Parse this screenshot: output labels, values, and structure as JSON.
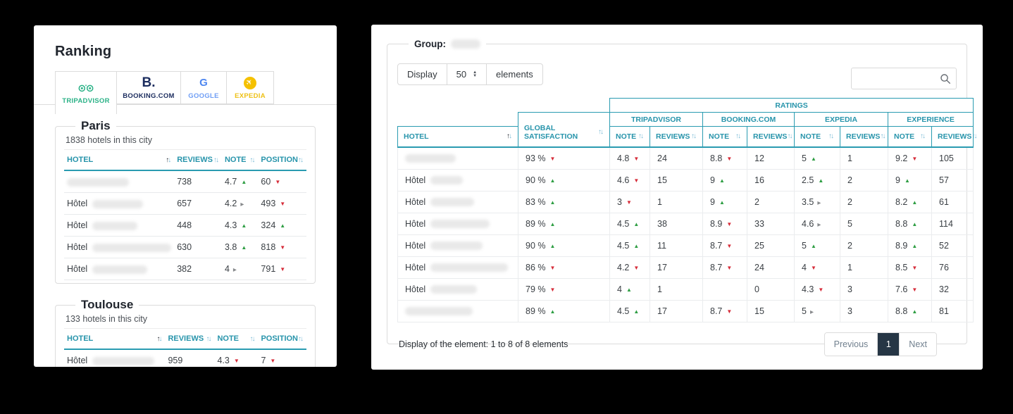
{
  "left_panel": {
    "title": "Ranking",
    "tabs": [
      {
        "label": "TRIPADVISOR",
        "icon": "tripadvisor-owl-icon",
        "color": "#2bb287",
        "icon_color": "#2bb287",
        "active": true
      },
      {
        "label": "BOOKING.COM",
        "icon": "booking-logo-icon",
        "color": "#1b2c5e",
        "icon_color": "#1b2c5e",
        "active": false
      },
      {
        "label": "GOOGLE",
        "icon": "google-g-icon",
        "color": "#6f9ef5",
        "icon_color": "#4c86f0",
        "active": false
      },
      {
        "label": "EXPEDIA",
        "icon": "expedia-plane-icon",
        "color": "#eec117",
        "icon_color": "#f5c100",
        "active": false
      }
    ],
    "table_columns": [
      "HOTEL",
      "REVIEWS",
      "NOTE",
      "POSITION"
    ],
    "cities": [
      {
        "name": "Paris",
        "subtitle": "1838 hotels in this city",
        "rows": [
          {
            "prefix": "",
            "blur": 88,
            "reviews": "738",
            "note": "4.7",
            "note_trend": "up",
            "position": "60",
            "position_trend": "down"
          },
          {
            "prefix": "Hôtel",
            "blur": 72,
            "reviews": "657",
            "note": "4.2",
            "note_trend": "flat",
            "position": "493",
            "position_trend": "down"
          },
          {
            "prefix": "Hôtel",
            "blur": 64,
            "reviews": "448",
            "note": "4.3",
            "note_trend": "up",
            "position": "324",
            "position_trend": "up"
          },
          {
            "prefix": "Hôtel",
            "blur": 112,
            "reviews": "630",
            "note": "3.8",
            "note_trend": "up",
            "position": "818",
            "position_trend": "down"
          },
          {
            "prefix": "Hôtel",
            "blur": 78,
            "reviews": "382",
            "note": "4",
            "note_trend": "flat",
            "position": "791",
            "position_trend": "down"
          }
        ]
      },
      {
        "name": "Toulouse",
        "subtitle": "133 hotels in this city",
        "rows": [
          {
            "prefix": "Hôtel",
            "blur": 88,
            "reviews": "959",
            "note": "4.3",
            "note_trend": "down",
            "position": "7",
            "position_trend": "down"
          }
        ]
      }
    ]
  },
  "right_panel": {
    "group_label": "Group:",
    "display_control": {
      "prefix": "Display",
      "value": "50",
      "suffix": "elements"
    },
    "search_value": "",
    "table": {
      "ratings_header": "RATINGS",
      "platforms": [
        "TRIPADVISOR",
        "BOOKING.COM",
        "EXPEDIA",
        "EXPERIENCE"
      ],
      "hotel_col": "HOTEL",
      "global_col": "GLOBAL SATISFACTION",
      "note_col": "NOTE",
      "reviews_col": "REVIEWS",
      "rows": [
        {
          "prefix": "",
          "blur": 72,
          "global": "93 %",
          "global_trend": "down",
          "cells": [
            {
              "v": "4.8",
              "t": "down"
            },
            {
              "v": "24"
            },
            {
              "v": "8.8",
              "t": "down"
            },
            {
              "v": "12"
            },
            {
              "v": "5",
              "t": "up"
            },
            {
              "v": "1"
            },
            {
              "v": "9.2",
              "t": "down"
            },
            {
              "v": "105"
            }
          ]
        },
        {
          "prefix": "Hôtel",
          "blur": 46,
          "global": "90 %",
          "global_trend": "up",
          "cells": [
            {
              "v": "4.6",
              "t": "down"
            },
            {
              "v": "15"
            },
            {
              "v": "9",
              "t": "up"
            },
            {
              "v": "16"
            },
            {
              "v": "2.5",
              "t": "up"
            },
            {
              "v": "2"
            },
            {
              "v": "9",
              "t": "up"
            },
            {
              "v": "57"
            }
          ]
        },
        {
          "prefix": "Hôtel",
          "blur": 62,
          "global": "83 %",
          "global_trend": "up",
          "cells": [
            {
              "v": "3",
              "t": "down"
            },
            {
              "v": "1"
            },
            {
              "v": "9",
              "t": "up"
            },
            {
              "v": "2"
            },
            {
              "v": "3.5",
              "t": "flat"
            },
            {
              "v": "2"
            },
            {
              "v": "8.2",
              "t": "up"
            },
            {
              "v": "61"
            }
          ]
        },
        {
          "prefix": "Hôtel",
          "blur": 84,
          "global": "89 %",
          "global_trend": "up",
          "cells": [
            {
              "v": "4.5",
              "t": "up"
            },
            {
              "v": "38"
            },
            {
              "v": "8.9",
              "t": "down"
            },
            {
              "v": "33"
            },
            {
              "v": "4.6",
              "t": "flat"
            },
            {
              "v": "5"
            },
            {
              "v": "8.8",
              "t": "up"
            },
            {
              "v": "114"
            }
          ]
        },
        {
          "prefix": "Hôtel",
          "blur": 74,
          "global": "90 %",
          "global_trend": "up",
          "cells": [
            {
              "v": "4.5",
              "t": "up"
            },
            {
              "v": "11"
            },
            {
              "v": "8.7",
              "t": "down"
            },
            {
              "v": "25"
            },
            {
              "v": "5",
              "t": "up"
            },
            {
              "v": "2"
            },
            {
              "v": "8.9",
              "t": "up"
            },
            {
              "v": "52"
            }
          ]
        },
        {
          "prefix": "Hôtel",
          "blur": 110,
          "global": "86 %",
          "global_trend": "down",
          "cells": [
            {
              "v": "4.2",
              "t": "down"
            },
            {
              "v": "17"
            },
            {
              "v": "8.7",
              "t": "down"
            },
            {
              "v": "24"
            },
            {
              "v": "4",
              "t": "down"
            },
            {
              "v": "1"
            },
            {
              "v": "8.5",
              "t": "down"
            },
            {
              "v": "76"
            }
          ]
        },
        {
          "prefix": "Hôtel",
          "blur": 66,
          "global": "79 %",
          "global_trend": "down",
          "cells": [
            {
              "v": "4",
              "t": "up"
            },
            {
              "v": "1"
            },
            {
              "v": ""
            },
            {
              "v": "0"
            },
            {
              "v": "4.3",
              "t": "down"
            },
            {
              "v": "3"
            },
            {
              "v": "7.6",
              "t": "down"
            },
            {
              "v": "32"
            }
          ]
        },
        {
          "prefix": "",
          "blur": 96,
          "global": "89 %",
          "global_trend": "up",
          "cells": [
            {
              "v": "4.5",
              "t": "up"
            },
            {
              "v": "17"
            },
            {
              "v": "8.7",
              "t": "down"
            },
            {
              "v": "15"
            },
            {
              "v": "5",
              "t": "flat"
            },
            {
              "v": "3"
            },
            {
              "v": "8.8",
              "t": "up"
            },
            {
              "v": "81"
            }
          ]
        }
      ]
    },
    "footer": {
      "summary": "Display of the element: 1 to 8 of 8 elements",
      "previous_label": "Previous",
      "page": "1",
      "next_label": "Next"
    }
  }
}
